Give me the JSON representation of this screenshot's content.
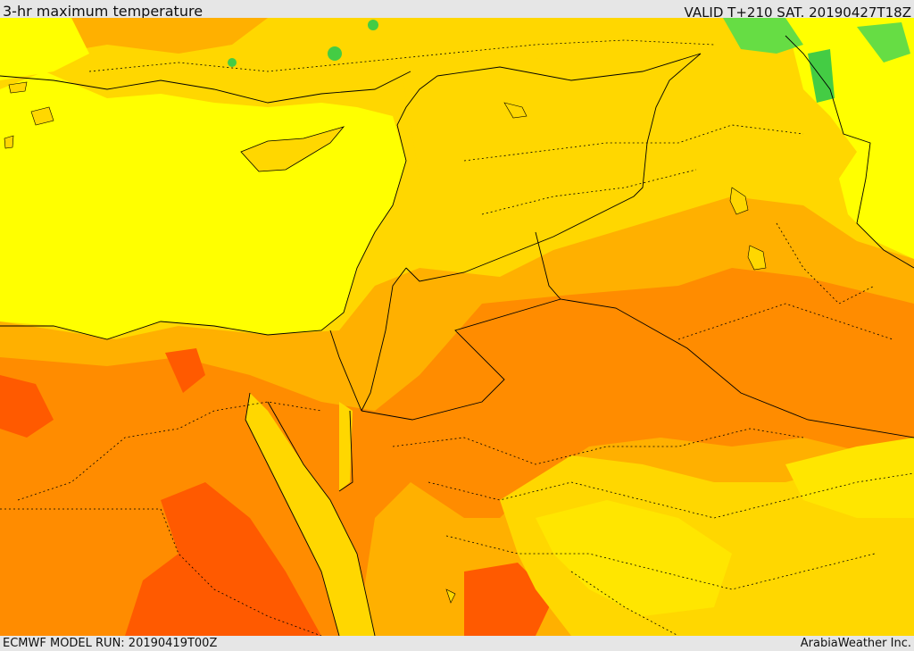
{
  "header": {
    "title": "3-hr maximum temperature",
    "valid": "VALID T+210 SAT. 20190427T18Z"
  },
  "footer": {
    "model_run": "ECMWF MODEL RUN: 20190419T00Z",
    "credit": "ArabiaWeather Inc."
  },
  "colors": {
    "sea_yellow": "#ffff00",
    "warm_gold": "#ffd700",
    "orange_light": "#ffb000",
    "orange": "#ff8c00",
    "orange_red": "#ff5a00",
    "green_cool": "#66dd44",
    "boundary": "#000000"
  }
}
